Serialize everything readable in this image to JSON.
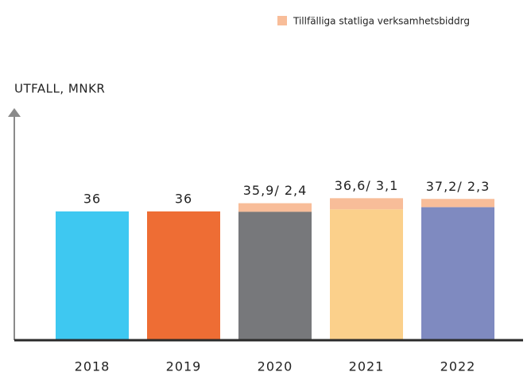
{
  "chart_data": {
    "type": "stacked_bar",
    "y_label": "UTFALL, MNKR",
    "categories": [
      "2018",
      "2019",
      "2020",
      "2021",
      "2022"
    ],
    "series": [
      {
        "colors": [
          "#3ec8f1",
          "#ee6d34",
          "#77787b",
          "#fbd08b",
          "#7f8ac0"
        ],
        "values": [
          36,
          36,
          35.9,
          36.6,
          37.2
        ],
        "value_labels": [
          "36",
          "36",
          "35,9/ 2,4",
          "36,6/ 3,1",
          "37,2/ 2,3"
        ]
      },
      {
        "name": "Tillfälliga statliga verksamhetsbiddrg",
        "color": "#f8bd99",
        "values": [
          null,
          null,
          2.4,
          3.1,
          2.3
        ]
      }
    ],
    "ylim": [
      0,
      64
    ],
    "legend": "top-right"
  }
}
